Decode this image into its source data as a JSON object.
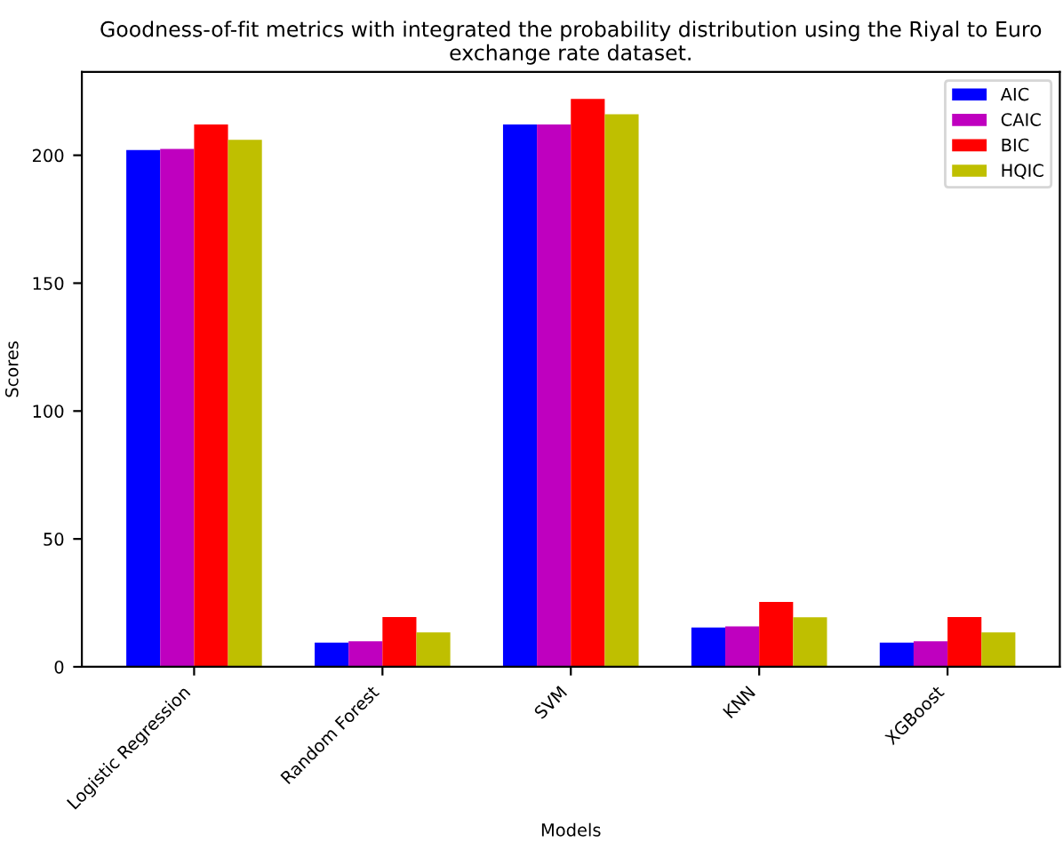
{
  "chart_data": {
    "type": "bar",
    "title": "Goodness-of-fit metrics with integrated the probability distribution using the Riyal to Euro exchange rate dataset.",
    "xlabel": "Models",
    "ylabel": "Scores",
    "categories": [
      "Logistic Regression",
      "Random Forest",
      "SVM",
      "KNN",
      "XGBoost"
    ],
    "series": [
      {
        "name": "AIC",
        "color": "#0000ff",
        "values": [
          202,
          9.5,
          212,
          15.4,
          9.5
        ]
      },
      {
        "name": "CAIC",
        "color": "#bf00bf",
        "values": [
          202.5,
          10,
          212,
          15.8,
          10
        ]
      },
      {
        "name": "BIC",
        "color": "#ff0000",
        "values": [
          212,
          19.5,
          222,
          25.4,
          19.5
        ]
      },
      {
        "name": "HQIC",
        "color": "#bfbf00",
        "values": [
          206,
          13.5,
          216,
          19.4,
          13.5
        ]
      }
    ],
    "ylim": [
      0,
      232.6
    ],
    "yticks": [
      0,
      50,
      100,
      150,
      200
    ],
    "legend": "top right",
    "grid": false
  }
}
